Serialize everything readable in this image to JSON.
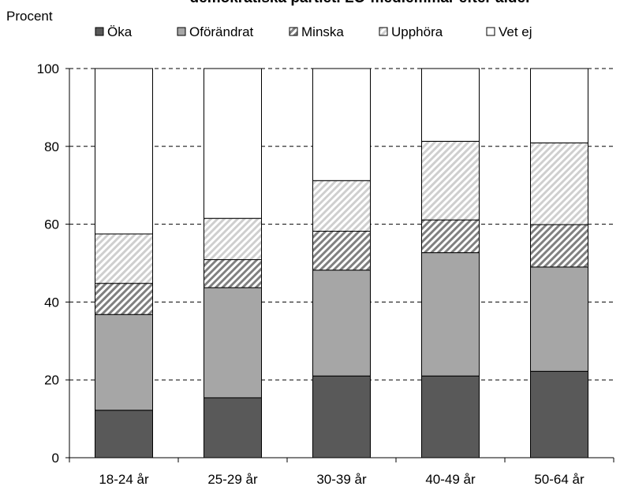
{
  "chart_data": {
    "type": "bar",
    "stacked": true,
    "title": "demokratiska partiet. LO-medlemmar efter ålder",
    "ylabel": "Procent",
    "xlabel": "",
    "ylim": [
      0,
      100
    ],
    "yticks": [
      0,
      20,
      40,
      60,
      80,
      100
    ],
    "grid": "dashed horizontal",
    "legend_position": "top",
    "categories": [
      "18-24 år",
      "25-29 år",
      "30-39 år",
      "40-49 år",
      "50-64 år"
    ],
    "series": [
      {
        "name": "Öka",
        "values": [
          12.2,
          15.4,
          21.0,
          21.0,
          22.2
        ],
        "color": "#595959",
        "pattern": "solid"
      },
      {
        "name": "Oförändrat",
        "values": [
          24.6,
          28.3,
          27.2,
          31.7,
          26.8
        ],
        "color": "#a6a6a6",
        "pattern": "solid"
      },
      {
        "name": "Minska",
        "values": [
          8.0,
          7.2,
          10.0,
          8.4,
          10.9
        ],
        "color": "#808080",
        "pattern": "dense-diagonal"
      },
      {
        "name": "Upphöra",
        "values": [
          12.7,
          10.6,
          13.0,
          20.2,
          21.0
        ],
        "color": "#c0c0c0",
        "pattern": "light-diagonal"
      },
      {
        "name": "Vet ej",
        "values": [
          42.5,
          38.5,
          28.8,
          18.7,
          19.1
        ],
        "color": "#ffffff",
        "pattern": "solid"
      }
    ]
  }
}
